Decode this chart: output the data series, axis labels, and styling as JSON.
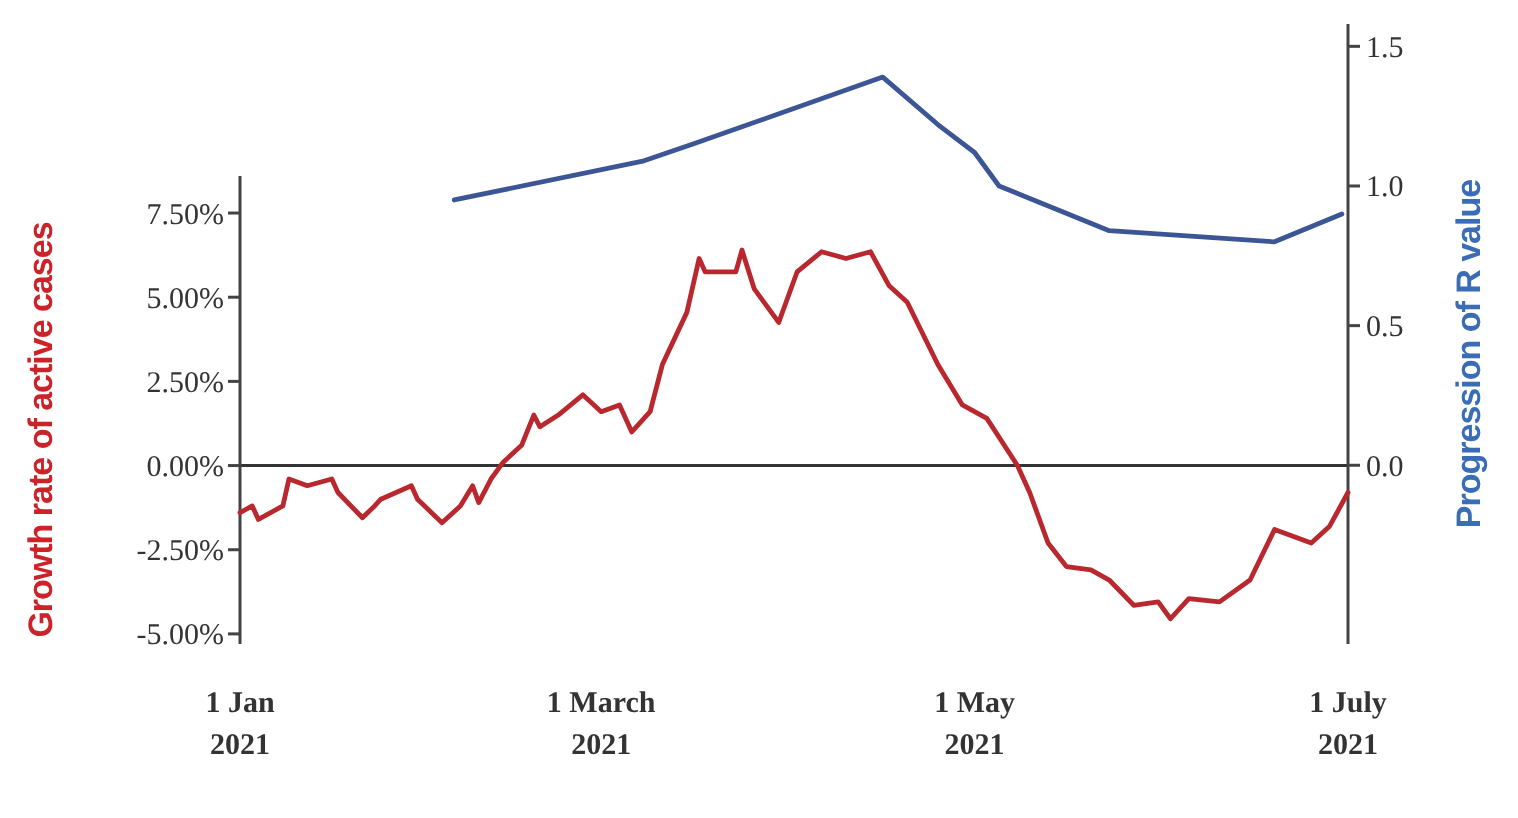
{
  "chart_data": {
    "type": "line",
    "ylabel": "Growth rate of active cases",
    "y2label": "Progression of R value",
    "xlim": [
      "2021-01-01",
      "2021-07-01"
    ],
    "xticks": [
      {
        "value": "2021-01-01",
        "label": "1 Jan 2021"
      },
      {
        "value": "2021-03-01",
        "label": "1 March 2021"
      },
      {
        "value": "2021-05-01",
        "label": "1 May 2021"
      },
      {
        "value": "2021-07-01",
        "label": "1 July 2021"
      }
    ],
    "ylim": [
      -5.3,
      8.6
    ],
    "yticks": [
      {
        "value": -5,
        "label": "-5.00%"
      },
      {
        "value": -2.5,
        "label": "-2.50%"
      },
      {
        "value": 0,
        "label": "0.00%"
      },
      {
        "value": 2.5,
        "label": "2.50%"
      },
      {
        "value": 5,
        "label": "5.00%"
      },
      {
        "value": 7.5,
        "label": "7.50%"
      }
    ],
    "y2lim": [
      -0.64,
      1.58
    ],
    "y2ticks": [
      {
        "value": 0,
        "label": "0.0"
      },
      0.5,
      {
        "value": 1,
        "label": "1.0"
      },
      1.5
    ],
    "ref_lines": [
      {
        "axis": "y",
        "value": 0,
        "color": "#333333"
      }
    ],
    "series": [
      {
        "color": "#b8282e",
        "x": [
          "2021-01-01",
          "2021-01-03",
          "2021-01-04",
          "2021-01-08",
          "2021-01-09",
          "2021-01-12",
          "2021-01-16",
          "2021-01-17",
          "2021-01-21",
          "2021-01-23",
          "2021-01-24",
          "2021-01-29",
          "2021-01-30",
          "2021-02-03",
          "2021-02-06",
          "2021-02-08",
          "2021-02-09",
          "2021-02-11",
          "2021-02-13",
          "2021-02-16",
          "2021-02-18",
          "2021-02-19",
          "2021-02-22",
          "2021-02-26",
          "2021-03-01",
          "2021-03-04",
          "2021-03-06",
          "2021-03-09",
          "2021-03-11",
          "2021-03-15",
          "2021-03-17",
          "2021-03-18",
          "2021-03-23",
          "2021-03-24",
          "2021-03-26",
          "2021-03-30",
          "2021-04-02",
          "2021-04-06",
          "2021-04-10",
          "2021-04-14",
          "2021-04-17",
          "2021-04-20",
          "2021-04-25",
          "2021-04-29",
          "2021-05-03",
          "2021-05-08",
          "2021-05-10",
          "2021-05-13",
          "2021-05-16",
          "2021-05-20",
          "2021-05-23",
          "2021-05-27",
          "2021-05-31",
          "2021-06-02",
          "2021-06-05",
          "2021-06-10",
          "2021-06-15",
          "2021-06-19",
          "2021-06-25",
          "2021-06-28",
          "2021-07-01"
        ],
        "values": [
          -1.4,
          -1.2,
          -1.6,
          -1.2,
          -0.4,
          -0.6,
          -0.4,
          -0.8,
          -1.55,
          -1.2,
          -1.0,
          -0.6,
          -1.0,
          -1.7,
          -1.2,
          -0.6,
          -1.1,
          -0.4,
          0.1,
          0.6,
          1.5,
          1.15,
          1.5,
          2.1,
          1.6,
          1.8,
          1.0,
          1.6,
          3.0,
          4.55,
          6.15,
          5.75,
          5.75,
          6.4,
          5.25,
          4.25,
          5.75,
          6.35,
          6.15,
          6.35,
          5.35,
          4.85,
          3.0,
          1.8,
          1.4,
          0.0,
          -0.8,
          -2.3,
          -3.0,
          -3.1,
          -3.4,
          -4.15,
          -4.05,
          -4.55,
          -3.95,
          -4.05,
          -3.4,
          -1.9,
          -2.3,
          -1.8,
          -0.8
        ]
      },
      {
        "color": "#3c5595",
        "axis": "y2",
        "x": [
          "2021-02-05",
          "2021-03-08",
          "2021-03-16",
          "2021-04-16",
          "2021-04-25",
          "2021-05-01",
          "2021-05-05",
          "2021-05-23",
          "2021-06-19",
          "2021-06-30"
        ],
        "values": [
          0.95,
          1.09,
          1.15,
          1.39,
          1.22,
          1.12,
          1.0,
          0.84,
          0.8,
          0.9
        ]
      }
    ]
  }
}
